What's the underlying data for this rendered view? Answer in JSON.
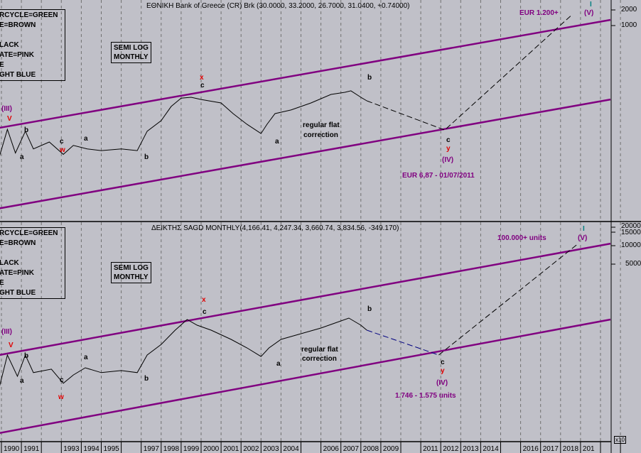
{
  "colors": {
    "background": "#c0c0c8",
    "channel": "#800080",
    "annotation": "#800080",
    "wave_red": "#e00000",
    "wave_teal": "#008080",
    "price": "#000000",
    "projection": "#000000",
    "projection_blue": "#000080"
  },
  "legend_lines": [
    "RCYCLE=GREEN",
    "E=BROWN",
    "",
    "LACK",
    "ATE=PINK",
    "E",
    "GHT BLUE"
  ],
  "scale_box": [
    "SEMI LOG",
    "MONTHLY"
  ],
  "x_axis_labels": [
    "1990",
    "1991",
    "1993",
    "1994",
    "1995",
    "1997",
    "1998",
    "1999",
    "2000",
    "2001",
    "2002",
    "2003",
    "2004",
    "2006",
    "2007",
    "2008",
    "2009",
    "2011",
    "2012",
    "2013",
    "2014",
    "2016",
    "2017",
    "2018",
    "201"
  ],
  "x_multiplier": "x10",
  "chart_data": [
    {
      "type": "line",
      "title": "ΕΘΝΙΚΗ Bank of Greece (CR) Brk (30.0000, 33.2000, 26.7000, 31.0400, +0.74000)",
      "scale": "log",
      "grid": "vertical dashed per year",
      "yticks": [
        1000,
        2000
      ],
      "series": [
        {
          "points": [
            [
              1989.9,
              3.0
            ],
            [
              1990.3,
              10.0
            ],
            [
              1990.7,
              3.5
            ],
            [
              1991.2,
              9.2
            ],
            [
              1991.6,
              4.2
            ],
            [
              1992.4,
              5.7
            ],
            [
              1993.1,
              3.3
            ],
            [
              1993.6,
              4.9
            ],
            [
              1994.3,
              4.2
            ],
            [
              1995.0,
              3.9
            ],
            [
              1996.0,
              4.2
            ],
            [
              1996.8,
              3.9
            ],
            [
              1997.3,
              9.2
            ],
            [
              1998.0,
              14.7
            ],
            [
              1998.5,
              27.6
            ],
            [
              1999.0,
              40
            ],
            [
              1999.5,
              41.5
            ],
            [
              2000.0,
              37.6
            ],
            [
              2001.0,
              32.3
            ],
            [
              2001.6,
              20.1
            ],
            [
              2002.3,
              12.5
            ],
            [
              2003.0,
              8.3
            ],
            [
              2003.3,
              12.5
            ],
            [
              2003.7,
              20.1
            ],
            [
              2004.5,
              23.6
            ],
            [
              2005.5,
              32.3
            ],
            [
              2006.5,
              47
            ],
            [
              2007.2,
              51.8
            ],
            [
              2007.5,
              55.2
            ],
            [
              2008.0,
              41.5
            ],
            [
              2008.3,
              35.4
            ]
          ]
        },
        {
          "style": "dashed",
          "points": [
            [
              2008.3,
              35.4
            ],
            [
              2012.2,
              9.7
            ],
            [
              2018.6,
              1655
            ]
          ]
        }
      ],
      "channels": [
        [
          [
            1989.9,
            10.7
          ],
          [
            2020.5,
            1287
          ]
        ],
        [
          [
            1989.9,
            0.3
          ],
          [
            2020.5,
            37.6
          ]
        ]
      ],
      "annotations": {
        "target": "EUR 1.200+",
        "low": "EUR 6,87 - 01/07/2011",
        "note1": "regular flat",
        "note2": "correction"
      },
      "waves": [
        [
          "(III)",
          "purple"
        ],
        [
          "V",
          "red"
        ],
        [
          "a",
          "black"
        ],
        [
          "b",
          "black"
        ],
        [
          "a",
          "black"
        ],
        [
          "c",
          "black"
        ],
        [
          "w",
          "red"
        ],
        [
          "b",
          "black"
        ],
        [
          "x",
          "red"
        ],
        [
          "c",
          "black"
        ],
        [
          "b",
          "black"
        ],
        [
          "a",
          "black"
        ],
        [
          "c",
          "black"
        ],
        [
          "y",
          "red"
        ],
        [
          "(IV)",
          "purple"
        ],
        [
          "I",
          "teal"
        ],
        [
          "(V)",
          "purple"
        ]
      ]
    },
    {
      "type": "line",
      "title": "ΔΕΙΚΤΗΣ SAGD MONTHLY(4,166.41, 4,247.34, 3,660.74, 3,834.56, -349.170)",
      "scale": "log",
      "grid": "vertical dashed per year",
      "yticks": [
        5000,
        10000,
        15000,
        20000
      ],
      "series": [
        {
          "points": [
            [
              1989.9,
              50
            ],
            [
              1990.3,
              165
            ],
            [
              1990.8,
              74
            ],
            [
              1991.2,
              165
            ],
            [
              1991.6,
              85
            ],
            [
              1992.5,
              97
            ],
            [
              1993.1,
              57
            ],
            [
              1993.6,
              78
            ],
            [
              1994.2,
              102
            ],
            [
              1995.0,
              85
            ],
            [
              1996.0,
              92
            ],
            [
              1996.8,
              85
            ],
            [
              1997.3,
              165
            ],
            [
              1998.0,
              245
            ],
            [
              1998.7,
              419
            ],
            [
              1999.3,
              625
            ],
            [
              1999.8,
              505
            ],
            [
              2000.5,
              419
            ],
            [
              2001.5,
              296
            ],
            [
              2002.3,
              215
            ],
            [
              2003.0,
              156
            ],
            [
              2003.4,
              215
            ],
            [
              2004.0,
              296
            ],
            [
              2005.0,
              367
            ],
            [
              2006.0,
              454
            ],
            [
              2006.7,
              547
            ],
            [
              2007.4,
              660
            ],
            [
              2008.0,
              505
            ],
            [
              2008.3,
              419
            ]
          ]
        },
        {
          "style": "dashed-blue",
          "points": [
            [
              2008.3,
              419
            ],
            [
              2011.9,
              165
            ]
          ]
        },
        {
          "style": "dashed",
          "points": [
            [
              2011.9,
              165
            ],
            [
              2018.8,
              10270
            ]
          ]
        }
      ],
      "channels": [
        [
          [
            1989.9,
            165
          ],
          [
            2020.5,
            10800
          ]
        ],
        [
          [
            1989.9,
            8.8
          ],
          [
            2020.5,
            625
          ]
        ]
      ],
      "annotations": {
        "target": "100.000+ units",
        "low": "1.746 - 1.575 units",
        "note1": "regular flat",
        "note2": "correction"
      },
      "waves": [
        [
          "(III)",
          "purple"
        ],
        [
          "V",
          "red"
        ],
        [
          "a",
          "black"
        ],
        [
          "b",
          "black"
        ],
        [
          "a",
          "black"
        ],
        [
          "c",
          "black"
        ],
        [
          "w",
          "red"
        ],
        [
          "b",
          "black"
        ],
        [
          "x",
          "red"
        ],
        [
          "c",
          "black"
        ],
        [
          "b",
          "black"
        ],
        [
          "a",
          "black"
        ],
        [
          "c",
          "black"
        ],
        [
          "y",
          "red"
        ],
        [
          "(IV)",
          "purple"
        ],
        [
          "I",
          "teal"
        ],
        [
          "(V)",
          "purple"
        ]
      ]
    }
  ]
}
